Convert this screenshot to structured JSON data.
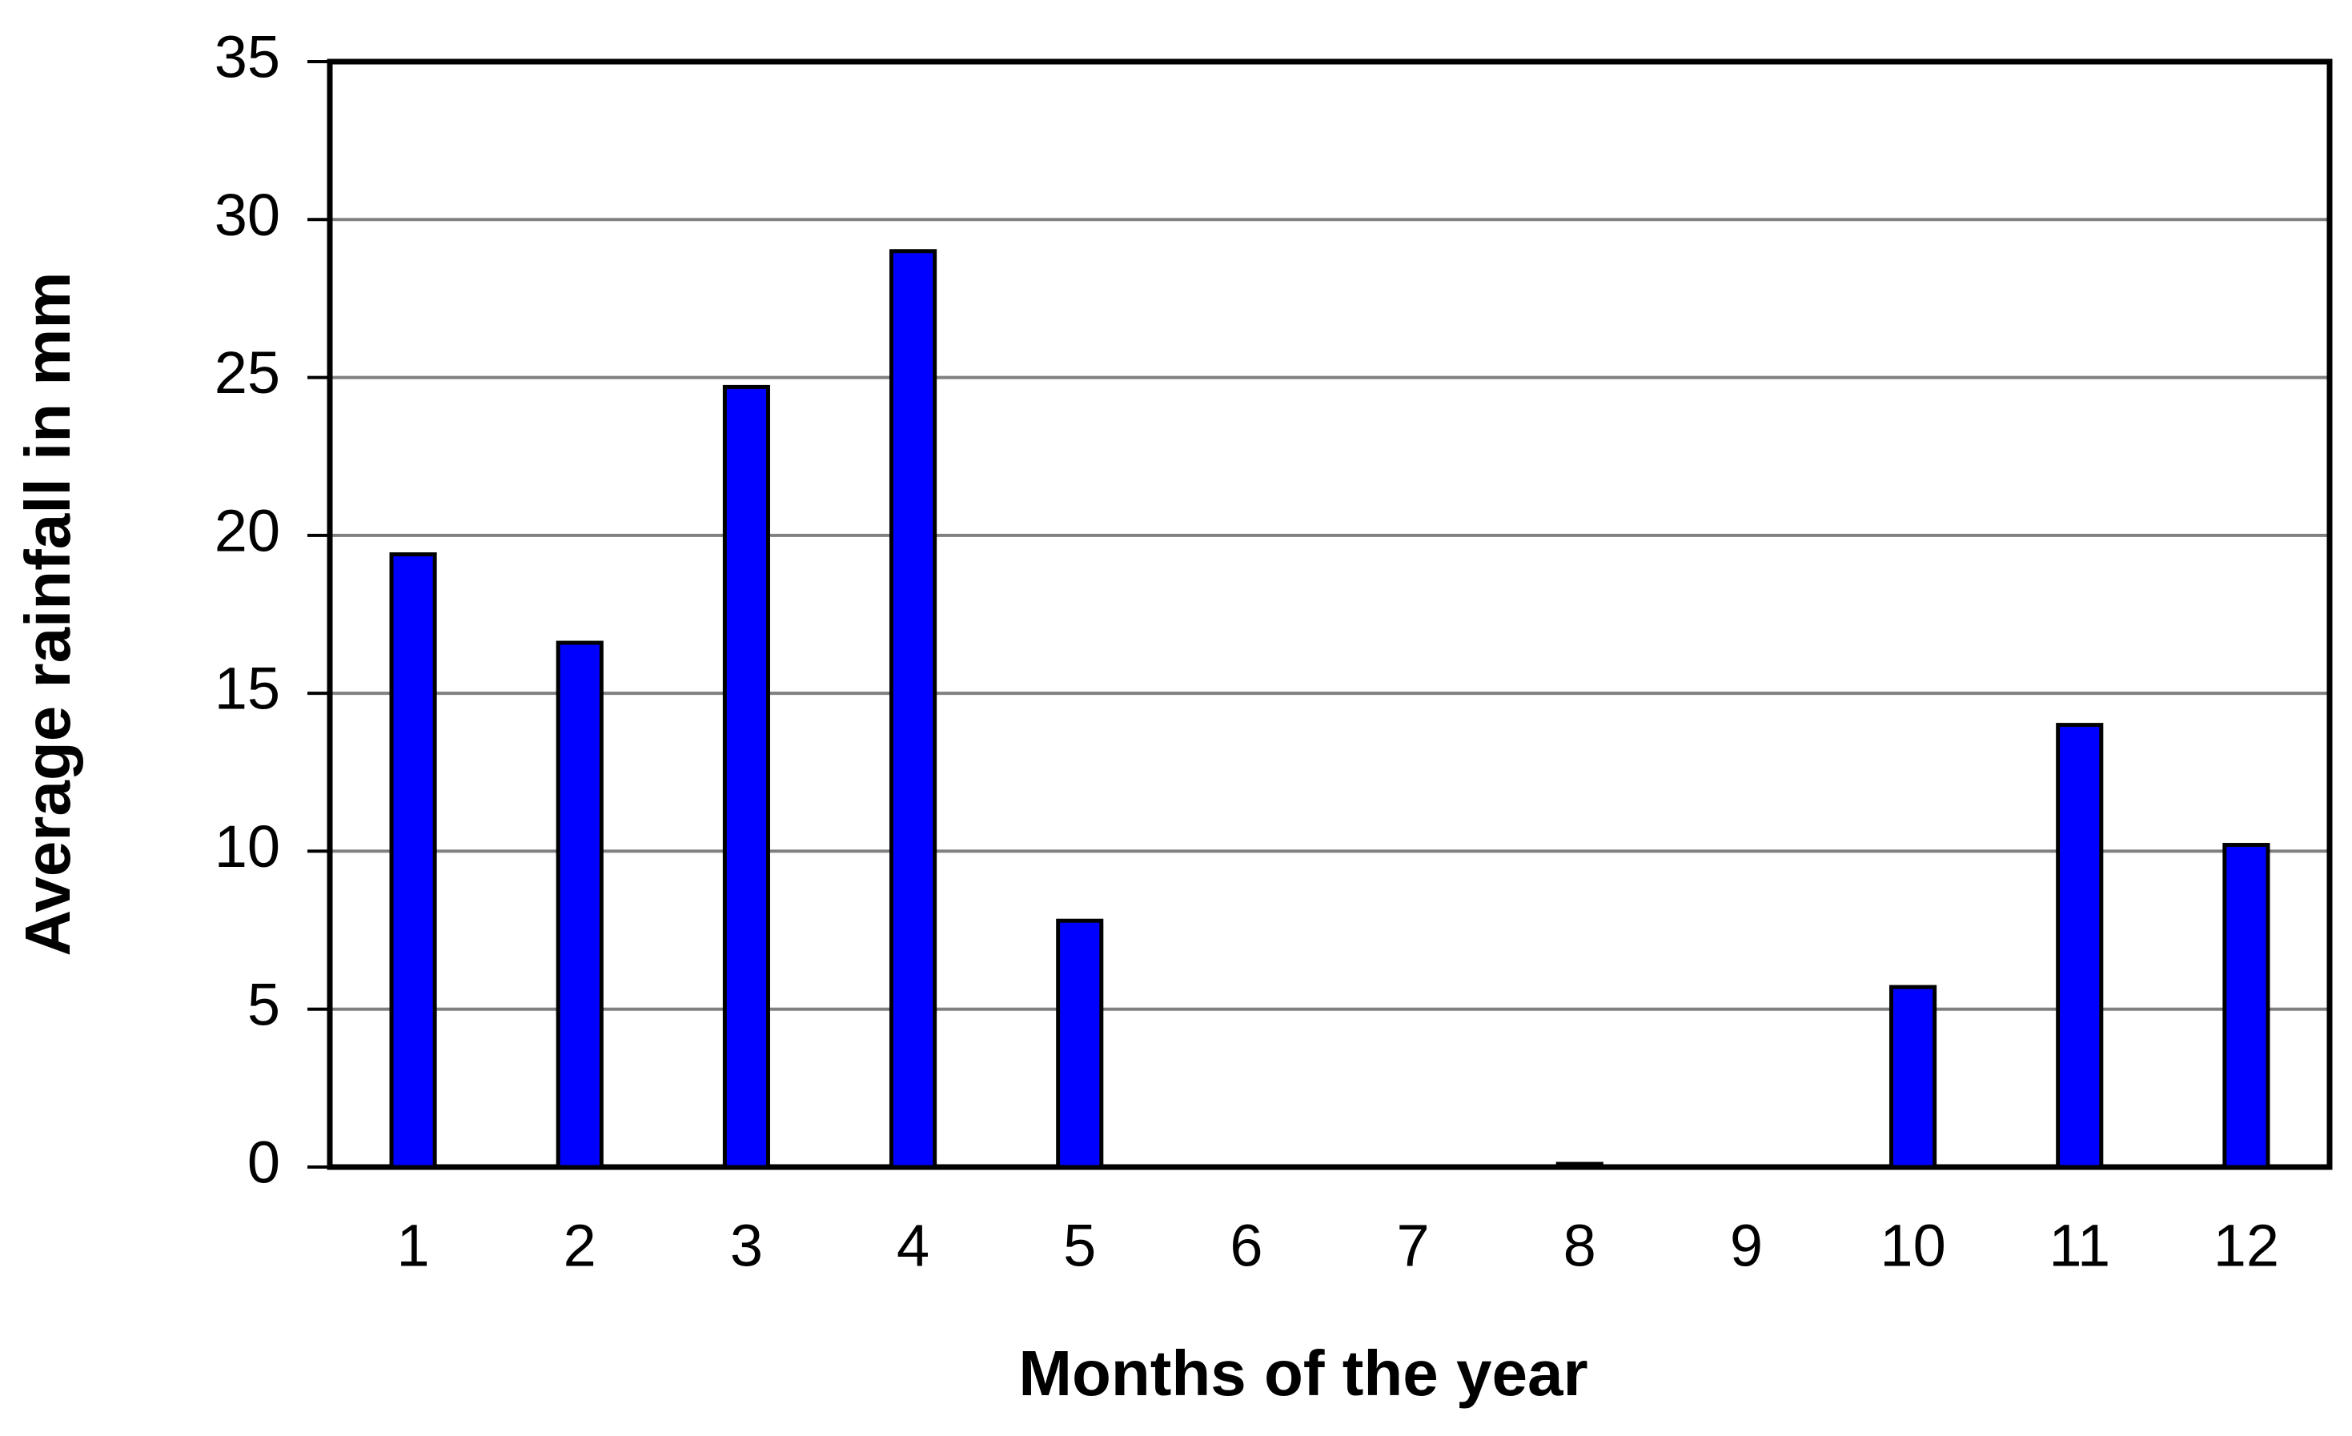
{
  "chart_data": {
    "type": "bar",
    "x_label": "Months of the year",
    "y_label": "Average rainfall in mm",
    "categories": [
      "1",
      "2",
      "3",
      "4",
      "5",
      "6",
      "7",
      "8",
      "9",
      "10",
      "11",
      "12"
    ],
    "values": [
      19.4,
      16.6,
      24.7,
      29.0,
      7.8,
      0,
      0,
      0.1,
      0,
      5.7,
      14.0,
      10.2
    ],
    "color": "#0000ff",
    "ylim": [
      0,
      35
    ],
    "yticks": [
      0,
      5,
      10,
      15,
      20,
      25,
      30,
      35
    ],
    "grid": true
  }
}
